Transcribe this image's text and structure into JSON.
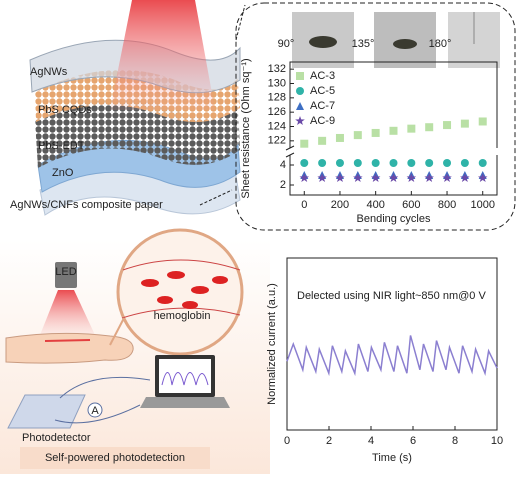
{
  "illustration": {
    "layers": [
      "AgNWs",
      "PbS CQDs",
      "PbS-EDT",
      "ZnO",
      "AgNWs/CNFs composite paper"
    ],
    "inset_angles": [
      "90°",
      "135°",
      "180°"
    ],
    "led": "LED",
    "blood": "hemoglobin",
    "ammeter": "A",
    "detector": "Photodetector",
    "caption": "Self-powered photodetection"
  },
  "chart_data": [
    {
      "type": "scatter",
      "x_label": "Bending cycles",
      "y_label": "Sheet resistance (Ohm sq⁻¹)",
      "x": [
        0,
        100,
        200,
        300,
        400,
        500,
        600,
        700,
        800,
        900,
        1000
      ],
      "xlim": [
        -80,
        1080
      ],
      "xticks": [
        0,
        200,
        400,
        600,
        800,
        1000
      ],
      "ylim": [
        1,
        5
      ],
      "yticks": [
        2,
        4
      ],
      "ylim_upper": [
        121,
        133
      ],
      "yticks_upper": [
        122,
        124,
        126,
        128,
        130,
        132
      ],
      "legend": "top-left",
      "series": [
        {
          "name": "AC-3",
          "color": "#b9e0a5",
          "marker": "square",
          "values": [
            121.6,
            122.0,
            122.4,
            122.8,
            123.1,
            123.4,
            123.7,
            123.9,
            124.2,
            124.4,
            124.7
          ]
        },
        {
          "name": "AC-5",
          "color": "#2fb3a8",
          "marker": "circle",
          "values": [
            4.2,
            4.2,
            4.2,
            4.2,
            4.2,
            4.2,
            4.2,
            4.2,
            4.2,
            4.2,
            4.2
          ]
        },
        {
          "name": "AC-7",
          "color": "#3e6fc4",
          "marker": "triangle",
          "values": [
            3.0,
            3.0,
            3.0,
            3.0,
            3.0,
            3.0,
            3.0,
            3.0,
            3.0,
            3.0,
            3.0
          ]
        },
        {
          "name": "AC-9",
          "color": "#6a4aa8",
          "marker": "star",
          "values": [
            2.7,
            2.7,
            2.7,
            2.7,
            2.7,
            2.7,
            2.7,
            2.7,
            2.7,
            2.7,
            2.7
          ]
        }
      ]
    },
    {
      "type": "line",
      "x_label": "Time (s)",
      "y_label": "Normalized current (a.u.)",
      "annotation": "Delected using NIR light~850 nm@0 V",
      "x": [
        0,
        0.3,
        0.75,
        0.92,
        1.37,
        1.54,
        1.99,
        2.16,
        2.61,
        2.78,
        3.23,
        3.4,
        3.85,
        4.02,
        4.47,
        4.64,
        5.09,
        5.26,
        5.71,
        5.88,
        6.33,
        6.5,
        6.95,
        7.12,
        7.57,
        7.74,
        8.19,
        8.36,
        8.81,
        8.98,
        9.43,
        9.6,
        10
      ],
      "xlim": [
        0,
        10
      ],
      "xticks": [
        0,
        2,
        4,
        6,
        8,
        10
      ],
      "ylim": [
        0,
        1
      ],
      "series": [
        {
          "name": "Normalized current",
          "color": "#8b7fd0",
          "values": [
            0.4,
            0.5,
            0.35,
            0.48,
            0.34,
            0.47,
            0.33,
            0.49,
            0.34,
            0.46,
            0.33,
            0.5,
            0.34,
            0.48,
            0.35,
            0.51,
            0.34,
            0.49,
            0.33,
            0.55,
            0.35,
            0.5,
            0.34,
            0.52,
            0.35,
            0.48,
            0.33,
            0.49,
            0.34,
            0.47,
            0.33,
            0.46,
            0.36
          ]
        }
      ]
    }
  ]
}
